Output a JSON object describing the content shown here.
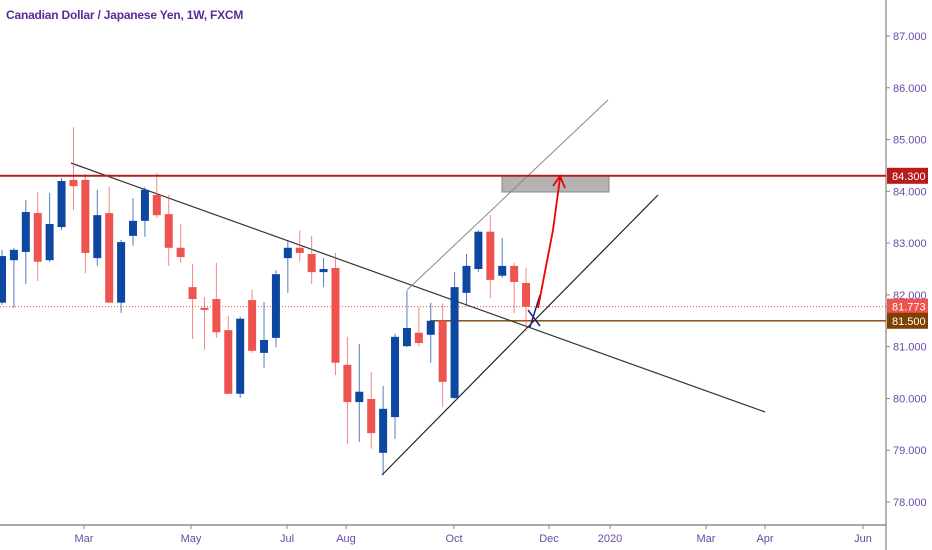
{
  "header": {
    "title": "Canadian Dollar / Japanese Yen, 1W, FXCM"
  },
  "colors": {
    "up": "#0d47a1",
    "down": "#ef5350",
    "resistance": "#b71c1c",
    "support": "#7f3f00",
    "last_price": "#ef5350",
    "text": "#6a4aa8"
  },
  "chart_data": {
    "type": "candlestick",
    "title": "Canadian Dollar / Japanese Yen, 1W, FXCM",
    "ylim": [
      77.6,
      87.6
    ],
    "y_ticks": [
      "87.000",
      "86.000",
      "85.000",
      "84.000",
      "83.000",
      "82.000",
      "81.000",
      "80.000",
      "79.000",
      "78.000"
    ],
    "x_ticks": [
      "Mar",
      "May",
      "Jul",
      "Aug",
      "Oct",
      "Dec",
      "2020",
      "Mar",
      "Apr",
      "Jun"
    ],
    "grid": false,
    "ohlc": [
      [
        81.85,
        82.87,
        81.81,
        82.75
      ],
      [
        82.67,
        82.91,
        81.75,
        82.87
      ],
      [
        82.83,
        83.83,
        82.21,
        83.6
      ],
      [
        83.58,
        83.99,
        82.27,
        82.64
      ],
      [
        82.67,
        83.97,
        82.64,
        83.37
      ],
      [
        83.31,
        84.26,
        83.25,
        84.2
      ],
      [
        84.22,
        85.24,
        83.64,
        84.1
      ],
      [
        84.22,
        84.33,
        82.42,
        82.81
      ],
      [
        82.71,
        84.03,
        82.56,
        83.54
      ],
      [
        83.58,
        84.08,
        81.85,
        81.85
      ],
      [
        81.85,
        83.06,
        81.65,
        83.02
      ],
      [
        83.14,
        83.87,
        82.95,
        83.43
      ],
      [
        83.43,
        84.08,
        83.12,
        84.03
      ],
      [
        83.93,
        84.35,
        83.49,
        83.54
      ],
      [
        83.56,
        83.93,
        82.56,
        82.91
      ],
      [
        82.91,
        83.37,
        82.62,
        82.73
      ],
      [
        82.15,
        82.6,
        81.15,
        81.92
      ],
      [
        81.75,
        81.96,
        80.94,
        81.71
      ],
      [
        81.92,
        82.62,
        81.17,
        81.28
      ],
      [
        81.32,
        81.6,
        80.09,
        80.09
      ],
      [
        80.09,
        81.58,
        80.01,
        81.54
      ],
      [
        81.9,
        82.1,
        80.88,
        80.92
      ],
      [
        80.88,
        81.86,
        80.59,
        81.13
      ],
      [
        81.17,
        82.48,
        80.99,
        82.4
      ],
      [
        82.71,
        83.04,
        82.04,
        82.91
      ],
      [
        82.91,
        83.24,
        82.64,
        82.81
      ],
      [
        82.79,
        83.14,
        82.21,
        82.44
      ],
      [
        82.44,
        82.71,
        82.15,
        82.5
      ],
      [
        82.52,
        82.81,
        80.45,
        80.69
      ],
      [
        80.65,
        81.19,
        79.12,
        79.93
      ],
      [
        79.93,
        81.05,
        79.16,
        80.13
      ],
      [
        79.99,
        80.51,
        79.03,
        79.33
      ],
      [
        78.95,
        80.24,
        78.52,
        79.8
      ],
      [
        79.64,
        81.25,
        79.22,
        81.19
      ],
      [
        81.01,
        82.08,
        80.99,
        81.36
      ],
      [
        81.27,
        81.77,
        81.01,
        81.07
      ],
      [
        81.23,
        81.85,
        80.69,
        81.5
      ],
      [
        81.5,
        81.83,
        79.84,
        80.32
      ],
      [
        80.01,
        82.44,
        79.99,
        82.15
      ],
      [
        82.04,
        82.79,
        81.81,
        82.56
      ],
      [
        82.5,
        83.25,
        82.44,
        83.22
      ],
      [
        83.22,
        83.54,
        81.94,
        82.29
      ],
      [
        82.37,
        83.1,
        82.33,
        82.56
      ],
      [
        82.56,
        82.62,
        81.65,
        82.25
      ],
      [
        82.23,
        82.52,
        81.3,
        81.77
      ]
    ],
    "levels": [
      {
        "price": 84.3,
        "label": "84.300",
        "color": "#b71c1c"
      },
      {
        "price": 81.773,
        "label": "81.773",
        "color": "#ef5350"
      },
      {
        "price": 81.5,
        "label": "81.500",
        "color": "#7f3f00"
      }
    ]
  }
}
